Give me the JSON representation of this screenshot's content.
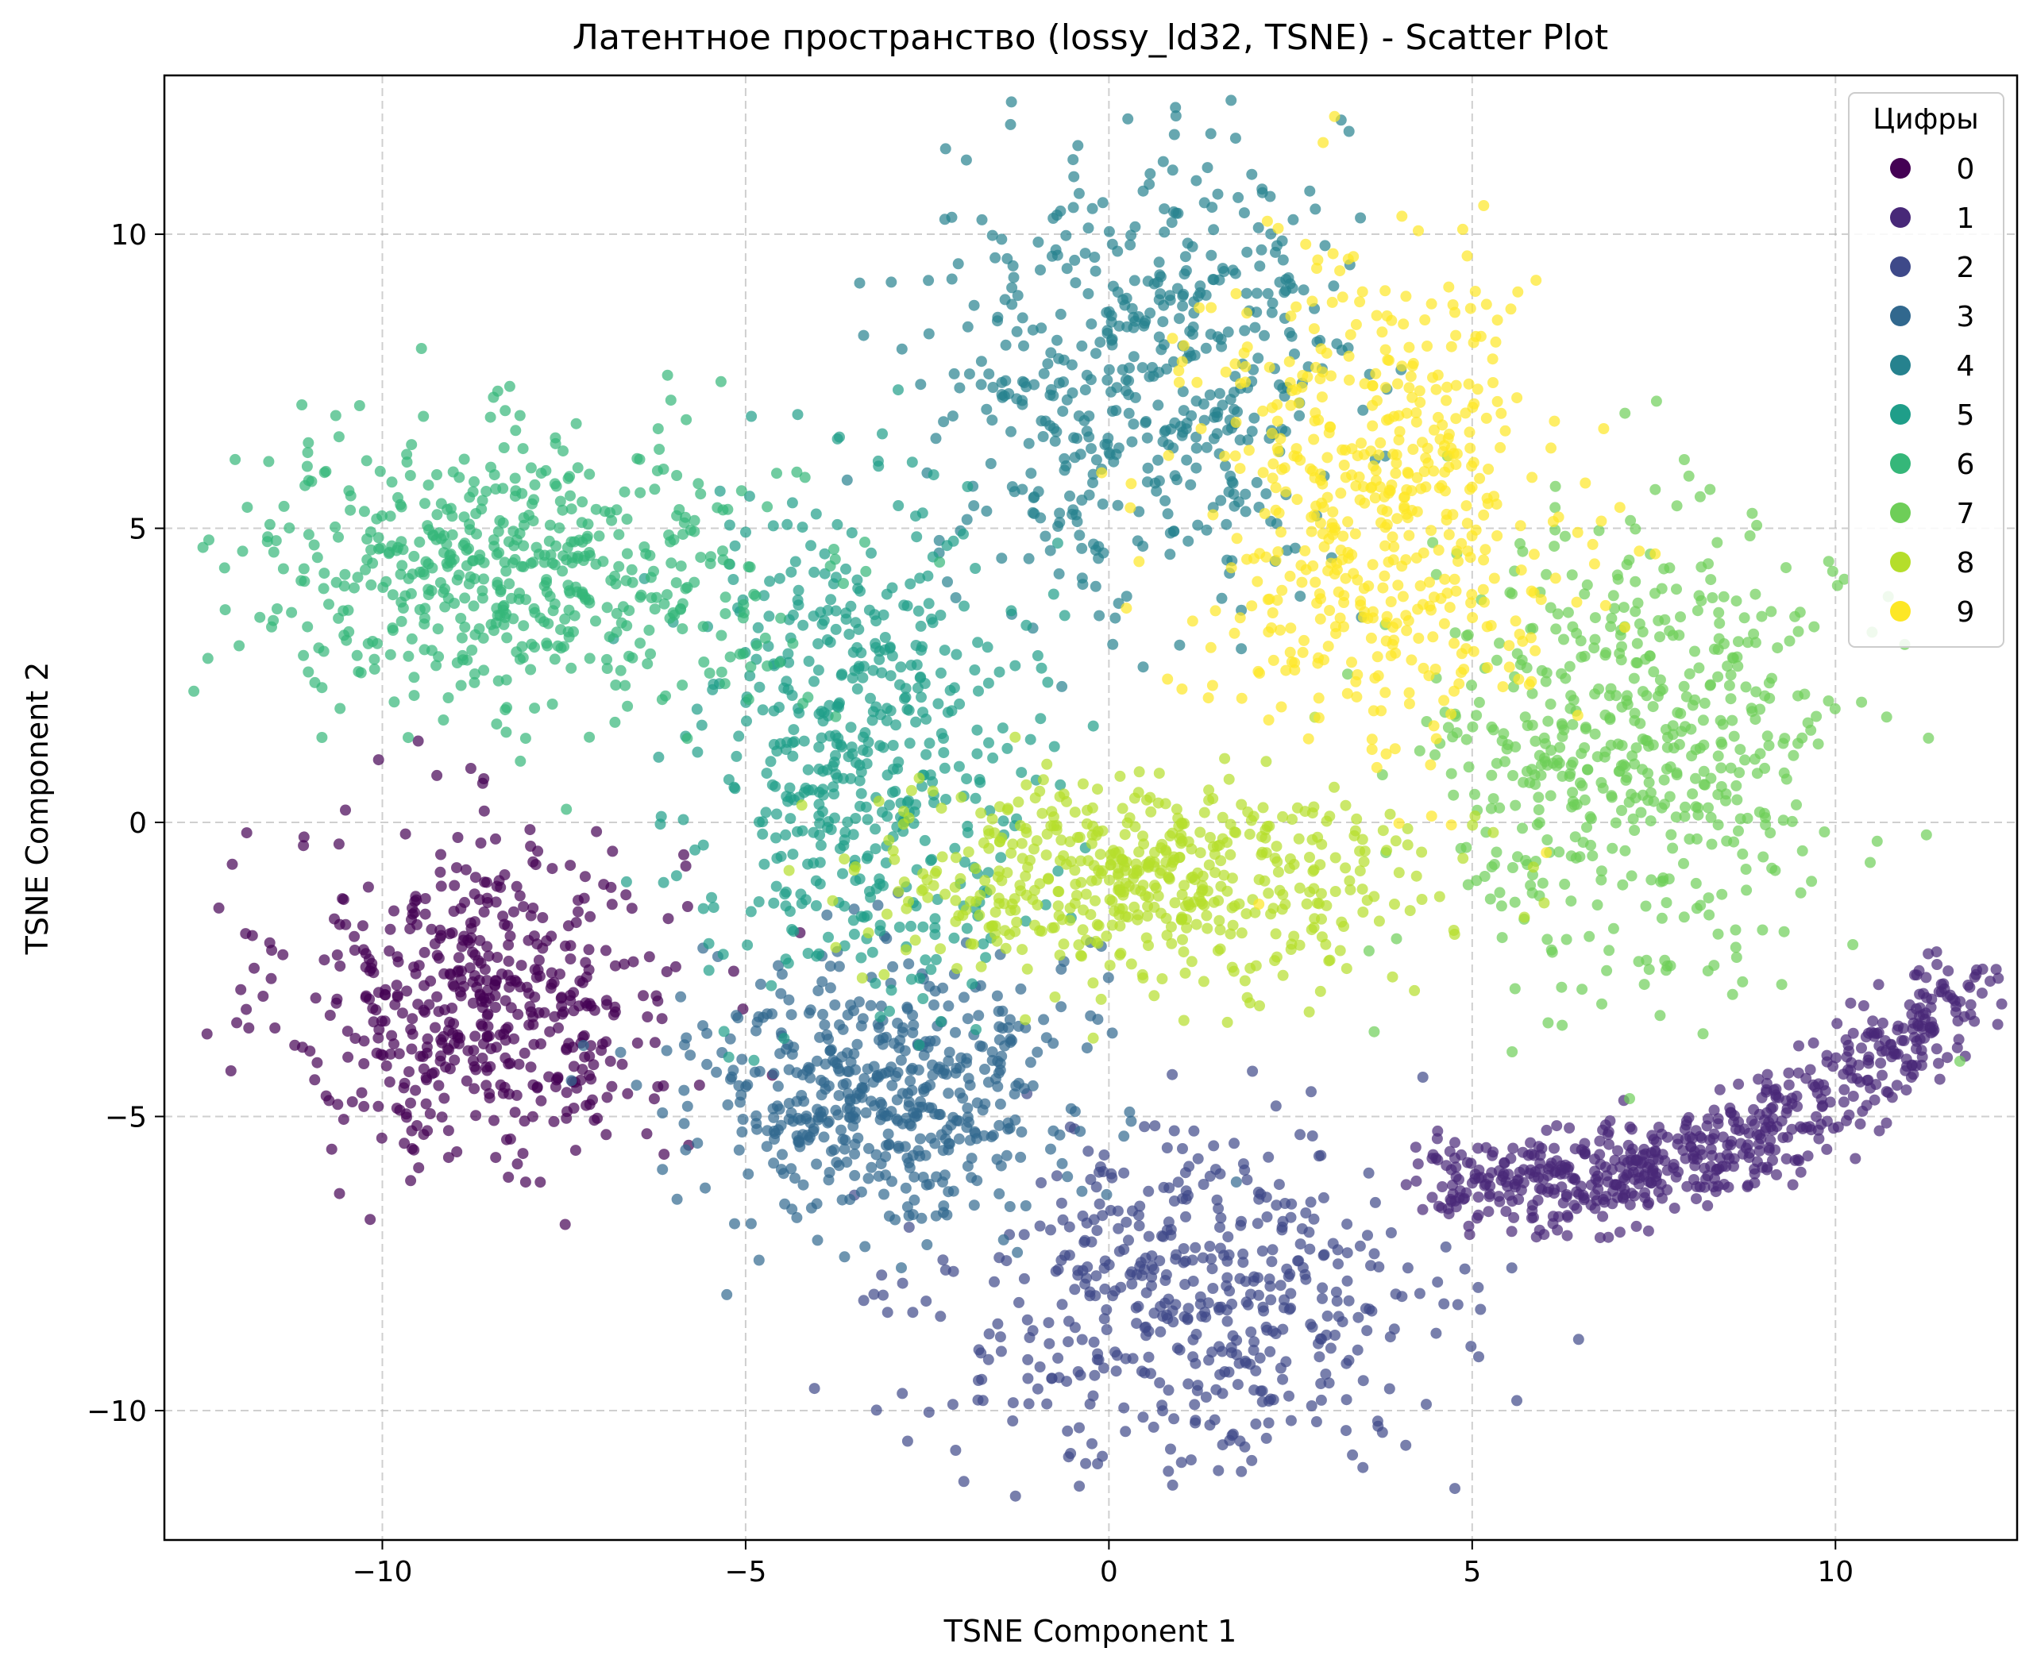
{
  "chart_data": {
    "type": "scatter",
    "title": "Латентное пространство (lossy_ld32, TSNE) - Scatter Plot",
    "xlabel": "TSNE Component 1",
    "ylabel": "TSNE Component 2",
    "xlim": [
      -13.0,
      12.5
    ],
    "ylim": [
      -12.2,
      12.7
    ],
    "xticks": [
      -10,
      -5,
      0,
      5,
      10
    ],
    "xtick_labels": [
      "−10",
      "−5",
      "0",
      "5",
      "10"
    ],
    "yticks": [
      -10,
      -5,
      0,
      5,
      10
    ],
    "ytick_labels": [
      "−10",
      "−5",
      "0",
      "5",
      "10"
    ],
    "grid": true,
    "legend_title": "Цифры",
    "legend_position": "top-right",
    "series": [
      {
        "name": "0",
        "color": "#440154",
        "cx": -8.6,
        "cy": -3.0,
        "sx": 1.35,
        "sy": 1.45,
        "n": 520
      },
      {
        "name": "1",
        "color": "#482878",
        "cx": 8.3,
        "cy": -4.6,
        "sx": 2.4,
        "sy": 1.3,
        "n": 620
      },
      {
        "name": "2",
        "color": "#3e4989",
        "cx": 1.1,
        "cy": -8.2,
        "sx": 1.7,
        "sy": 1.4,
        "n": 500
      },
      {
        "name": "3",
        "color": "#31688e",
        "cx": -3.1,
        "cy": -4.5,
        "sx": 1.3,
        "sy": 1.2,
        "n": 520
      },
      {
        "name": "4",
        "color": "#26828e",
        "cx": 0.5,
        "cy": 7.6,
        "sx": 1.4,
        "sy": 1.9,
        "n": 520
      },
      {
        "name": "5",
        "color": "#1f9e89",
        "cx": -3.4,
        "cy": 1.4,
        "sx": 1.2,
        "sy": 2.0,
        "n": 520
      },
      {
        "name": "6",
        "color": "#35b779",
        "cx": -8.2,
        "cy": 4.3,
        "sx": 1.9,
        "sy": 1.2,
        "n": 560
      },
      {
        "name": "7",
        "color": "#6ece58",
        "cx": 7.3,
        "cy": 1.2,
        "sx": 1.4,
        "sy": 2.0,
        "n": 560
      },
      {
        "name": "8",
        "color": "#b5de2b",
        "cx": 0.4,
        "cy": -1.0,
        "sx": 1.9,
        "sy": 0.9,
        "n": 540
      },
      {
        "name": "9",
        "color": "#fde725",
        "cx": 3.7,
        "cy": 5.3,
        "sx": 1.3,
        "sy": 2.1,
        "n": 540
      }
    ]
  }
}
